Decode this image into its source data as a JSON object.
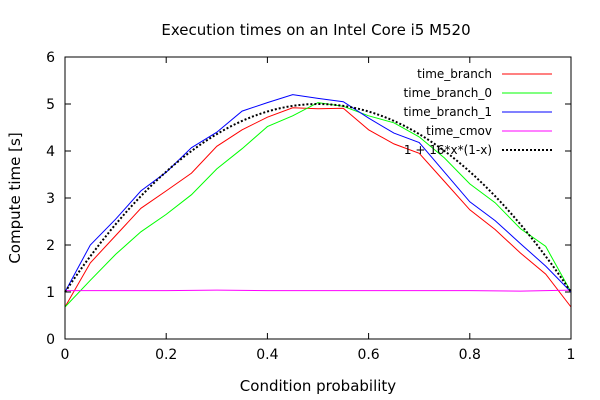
{
  "chart_data": {
    "type": "line",
    "title": "Execution times on an Intel Core i5 M520",
    "xlabel": "Condition probability",
    "ylabel": "Compute time [s]",
    "xlim": [
      0,
      1
    ],
    "ylim": [
      0,
      6
    ],
    "x_ticks": [
      0,
      0.2,
      0.4,
      0.6,
      0.8,
      1
    ],
    "x_tick_labels": [
      "0",
      "0.2",
      "0.4",
      "0.6",
      "0.8",
      "1"
    ],
    "y_ticks": [
      0,
      1,
      2,
      3,
      4,
      5,
      6
    ],
    "y_tick_labels": [
      "0",
      "1",
      "2",
      "3",
      "4",
      "5",
      "6"
    ],
    "grid": false,
    "legend_position": "top-right",
    "series": [
      {
        "name": "time_branch",
        "color": "#ff0000",
        "dash": "solid",
        "x": [
          0,
          0.05,
          0.1,
          0.15,
          0.2,
          0.25,
          0.3,
          0.35,
          0.4,
          0.45,
          0.5,
          0.55,
          0.6,
          0.65,
          0.7,
          0.75,
          0.8,
          0.85,
          0.9,
          0.95,
          1
        ],
        "y": [
          0.68,
          1.62,
          2.2,
          2.78,
          3.15,
          3.53,
          4.1,
          4.45,
          4.72,
          4.92,
          4.9,
          4.91,
          4.45,
          4.15,
          3.95,
          3.35,
          2.75,
          2.33,
          1.83,
          1.38,
          0.68
        ]
      },
      {
        "name": "time_branch_0",
        "color": "#00ff00",
        "dash": "solid",
        "x": [
          0,
          0.05,
          0.1,
          0.15,
          0.2,
          0.25,
          0.3,
          0.35,
          0.4,
          0.45,
          0.5,
          0.55,
          0.6,
          0.65,
          0.7,
          0.75,
          0.8,
          0.85,
          0.9,
          0.95,
          1
        ],
        "y": [
          0.68,
          1.25,
          1.8,
          2.28,
          2.65,
          3.07,
          3.62,
          4.05,
          4.52,
          4.75,
          5.03,
          4.95,
          4.75,
          4.6,
          4.3,
          3.85,
          3.3,
          2.9,
          2.35,
          1.97,
          1.0
        ]
      },
      {
        "name": "time_branch_1",
        "color": "#0000ff",
        "dash": "solid",
        "x": [
          0,
          0.05,
          0.1,
          0.15,
          0.2,
          0.25,
          0.3,
          0.35,
          0.4,
          0.45,
          0.5,
          0.55,
          0.6,
          0.65,
          0.7,
          0.75,
          0.8,
          0.85,
          0.9,
          0.95,
          1
        ],
        "y": [
          1.0,
          2.0,
          2.55,
          3.15,
          3.55,
          4.07,
          4.4,
          4.85,
          5.03,
          5.2,
          5.12,
          5.05,
          4.7,
          4.38,
          4.18,
          3.55,
          2.92,
          2.52,
          2.03,
          1.55,
          1.0
        ]
      },
      {
        "name": "time_cmov",
        "color": "#ff00ff",
        "dash": "solid",
        "x": [
          0,
          0.1,
          0.2,
          0.3,
          0.4,
          0.5,
          0.6,
          0.7,
          0.8,
          0.9,
          1
        ],
        "y": [
          1.03,
          1.03,
          1.03,
          1.04,
          1.03,
          1.03,
          1.03,
          1.03,
          1.03,
          1.02,
          1.04
        ]
      },
      {
        "name": "1 + 16*x*(1-x)",
        "color": "#000000",
        "dash": "dotted",
        "function": "1 + 16*x*(1-x)"
      }
    ]
  }
}
